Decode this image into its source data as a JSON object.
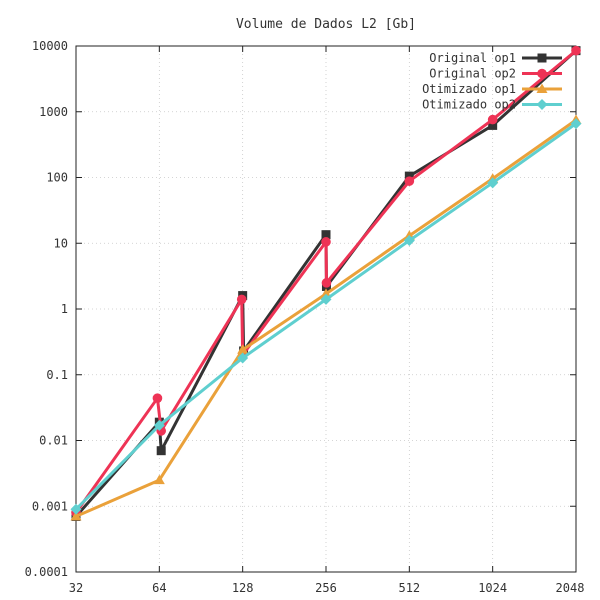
{
  "chart_data": {
    "type": "line",
    "title": "Volume de Dados L2 [Gb]",
    "xlabel": "",
    "ylabel": "",
    "x_scale": "log2",
    "y_scale": "log10",
    "xlim": [
      32,
      2048
    ],
    "ylim": [
      0.0001,
      10000
    ],
    "grid": true,
    "legend_position": "top-right",
    "x_ticks": [
      {
        "value": 32,
        "label": "32"
      },
      {
        "value": 64,
        "label": "64"
      },
      {
        "value": 128,
        "label": "128"
      },
      {
        "value": 256,
        "label": "256"
      },
      {
        "value": 512,
        "label": "512"
      },
      {
        "value": 1024,
        "label": "1024"
      },
      {
        "value": 2048,
        "label": "2048"
      }
    ],
    "y_ticks": [
      {
        "value": 0.0001,
        "label": "0.0001"
      },
      {
        "value": 0.001,
        "label": "0.001"
      },
      {
        "value": 0.01,
        "label": "0.01"
      },
      {
        "value": 0.1,
        "label": "0.1"
      },
      {
        "value": 1,
        "label": "1"
      },
      {
        "value": 10,
        "label": "10"
      },
      {
        "value": 100,
        "label": "100"
      },
      {
        "value": 1000,
        "label": "1000"
      },
      {
        "value": 10000,
        "label": "10000"
      }
    ],
    "series": [
      {
        "name": "Original op1",
        "color": "#333333",
        "marker": "square",
        "points": [
          [
            32,
            0.0007
          ],
          [
            64,
            0.019
          ],
          [
            65,
            0.007
          ],
          [
            128,
            1.6
          ],
          [
            129,
            0.23
          ],
          [
            256,
            13.5
          ],
          [
            257,
            2.2
          ],
          [
            512,
            105
          ],
          [
            1024,
            620
          ],
          [
            2048,
            8500
          ]
        ]
      },
      {
        "name": "Original op2",
        "color": "#ee3355",
        "marker": "circle",
        "points": [
          [
            32,
            0.0008
          ],
          [
            63,
            0.044
          ],
          [
            65,
            0.014
          ],
          [
            127,
            1.4
          ],
          [
            128,
            0.2
          ],
          [
            256,
            10.5
          ],
          [
            257,
            2.5
          ],
          [
            512,
            88
          ],
          [
            1024,
            760
          ],
          [
            2048,
            8500
          ]
        ]
      },
      {
        "name": "Otimizado op1",
        "color": "#eaa13a",
        "marker": "triangle",
        "points": [
          [
            32,
            0.0007
          ],
          [
            64,
            0.0025
          ],
          [
            128,
            0.24
          ],
          [
            256,
            1.7
          ],
          [
            512,
            13
          ],
          [
            1024,
            96
          ],
          [
            2048,
            750
          ]
        ]
      },
      {
        "name": "Otimizado op2",
        "color": "#5fcfcf",
        "marker": "diamond",
        "points": [
          [
            32,
            0.0009
          ],
          [
            64,
            0.017
          ],
          [
            128,
            0.18
          ],
          [
            256,
            1.4
          ],
          [
            512,
            11
          ],
          [
            1024,
            83
          ],
          [
            2048,
            660
          ]
        ]
      }
    ]
  }
}
